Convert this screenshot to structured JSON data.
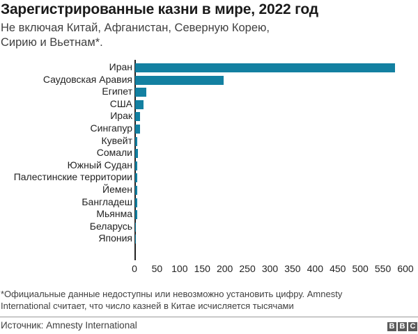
{
  "header": {
    "title": "Зарегистрированные казни в мире, 2022 год",
    "subtitle": "Не включая Китай, Афганистан, Северную Корею, Сирию и Вьетнам*."
  },
  "footer": {
    "note": "*Официальные данные недоступны или невозможно установить цифру. Amnesty International считает, что число казней в Китае исчисляется тысячами",
    "source": "Источник: Amnesty International",
    "logo": [
      "B",
      "B",
      "C"
    ]
  },
  "colors": {
    "bar": "#1380a1",
    "axis": "#222222"
  },
  "chart_data": {
    "type": "bar",
    "orientation": "horizontal",
    "title": "Зарегистрированные казни в мире, 2022 год",
    "subtitle": "Не включая Китай, Афганистан, Северную Корею, Сирию и Вьетнам*.",
    "categories": [
      "Иран",
      "Саудовская Аравия",
      "Египет",
      "США",
      "Ирак",
      "Сингапур",
      "Кувейт",
      "Сомали",
      "Южный Судан",
      "Палестинские территории",
      "Йемен",
      "Бангладеш",
      "Мьянма",
      "Беларусь",
      "Япония"
    ],
    "values": [
      576,
      196,
      24,
      18,
      11,
      11,
      5,
      6,
      5,
      5,
      4,
      4,
      4,
      1,
      1
    ],
    "xlabel": "",
    "ylabel": "",
    "xlim": [
      0,
      600
    ],
    "xticks": [
      "0",
      "50",
      "100",
      "150",
      "200",
      "250",
      "300",
      "350",
      "400",
      "450",
      "500",
      "550",
      "600"
    ],
    "grid": false,
    "legend": null
  }
}
